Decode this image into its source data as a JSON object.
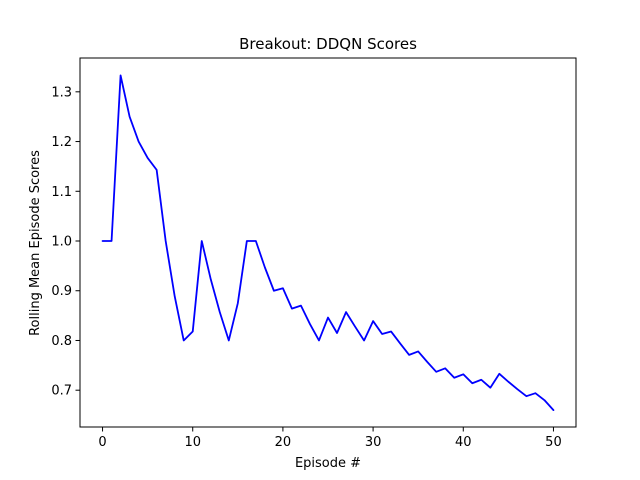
{
  "chart_data": {
    "type": "line",
    "title": "Breakout: DDQN Scores",
    "xlabel": "Episode #",
    "ylabel": "Rolling Mean Episode Scores",
    "xlim": [
      -2.5,
      52.5
    ],
    "ylim": [
      0.626,
      1.368
    ],
    "xticks": [
      0,
      10,
      20,
      30,
      40,
      50
    ],
    "yticks": [
      0.7,
      0.8,
      0.9,
      1.0,
      1.1,
      1.2,
      1.3
    ],
    "xtick_labels": [
      "0",
      "10",
      "20",
      "30",
      "40",
      "50"
    ],
    "ytick_labels": [
      "0.7",
      "0.8",
      "0.9",
      "1.0",
      "1.1",
      "1.2",
      "1.3"
    ],
    "grid": false,
    "series": [
      {
        "color": "#0000ff",
        "x": [
          0,
          1,
          2,
          3,
          4,
          5,
          6,
          7,
          8,
          9,
          10,
          11,
          12,
          13,
          14,
          15,
          16,
          17,
          18,
          19,
          20,
          21,
          22,
          23,
          24,
          25,
          26,
          27,
          28,
          29,
          30,
          31,
          32,
          33,
          34,
          35,
          36,
          37,
          38,
          39,
          40,
          41,
          42,
          43,
          44,
          45,
          46,
          47,
          48,
          49,
          50
        ],
        "values": [
          1.0,
          1.0,
          1.333,
          1.25,
          1.2,
          1.167,
          1.143,
          1.0,
          0.889,
          0.8,
          0.818,
          1.0,
          0.923,
          0.857,
          0.8,
          0.875,
          1.0,
          1.0,
          0.947,
          0.9,
          0.905,
          0.864,
          0.87,
          0.833,
          0.8,
          0.846,
          0.815,
          0.857,
          0.828,
          0.8,
          0.839,
          0.813,
          0.818,
          0.794,
          0.771,
          0.778,
          0.757,
          0.737,
          0.744,
          0.725,
          0.732,
          0.714,
          0.721,
          0.705,
          0.733,
          0.717,
          0.702,
          0.688,
          0.694,
          0.68,
          0.66
        ]
      }
    ]
  }
}
